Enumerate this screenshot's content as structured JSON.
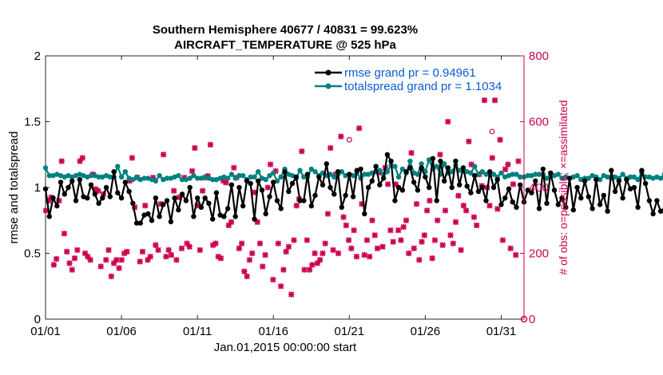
{
  "chart_data": {
    "type": "line",
    "title_line1": "Southern Hemisphere 40677 / 40831 = 99.623%",
    "title_line2": "AIRCRAFT_TEMPERATURE @ 525 hPa",
    "xlabel": "Jan.01,2015 00:00:00 start",
    "ylabel_left": "rmse and totalspread",
    "ylabel_right": "# of obs: o=possible; ×=assimilated",
    "x_tick_labels": [
      "01/01",
      "01/06",
      "01/11",
      "01/16",
      "01/21",
      "01/26",
      "01/31"
    ],
    "x_tick_days": [
      1,
      6,
      11,
      16,
      21,
      26,
      31
    ],
    "xlim": [
      1,
      32.5
    ],
    "ylim_left": [
      0,
      2
    ],
    "y_left_ticks": [
      0,
      0.5,
      1,
      1.5,
      2
    ],
    "y_left_tick_labels": [
      "0",
      "0.5",
      "1",
      "1.5",
      "2"
    ],
    "ylim_right": [
      0,
      800
    ],
    "y_right_ticks": [
      0,
      200,
      400,
      600,
      800
    ],
    "y_right_tick_labels": [
      "0",
      "200",
      "400",
      "600",
      "800"
    ],
    "legend": {
      "placement": "top-right",
      "entries": [
        "rmse grand pr = 0.94961",
        "totalspread grand pr = 1.1034"
      ]
    },
    "colors": {
      "rmse": "#000000",
      "totalspread": "#008080",
      "obs": "#cc0052",
      "legend_text": "#0a5cd6"
    },
    "x_step_days": 0.25,
    "series": [
      {
        "name": "rmse",
        "values": [
          0.99,
          0.78,
          0.92,
          0.86,
          1.04,
          0.95,
          1.0,
          1.05,
          0.9,
          1.06,
          0.93,
          0.92,
          1.02,
          0.95,
          0.88,
          0.92,
          1.0,
          0.93,
          1.12,
          0.96,
          0.92,
          1.04,
          0.97,
          0.88,
          0.73,
          0.73,
          0.79,
          0.8,
          0.75,
          0.92,
          0.78,
          0.87,
          0.9,
          0.74,
          0.92,
          0.83,
          0.95,
          0.9,
          1.0,
          0.78,
          0.92,
          0.85,
          0.92,
          0.88,
          0.76,
          0.96,
          0.79,
          0.78,
          0.84,
          1.02,
          0.78,
          1.0,
          0.86,
          1.05,
          1.03,
          0.76,
          1.05,
          0.98,
          0.8,
          0.93,
          1.04,
          0.9,
          0.84,
          1.12,
          0.97,
          1.03,
          1.08,
          0.9,
          0.9,
          1.1,
          0.86,
          0.94,
          1.08,
          1.02,
          1.18,
          1.0,
          0.95,
          1.12,
          0.85,
          0.94,
          1.1,
          0.93,
          1.13,
          1.14,
          0.8,
          1.0,
          1.05,
          1.16,
          1.02,
          1.07,
          1.25,
          1.2,
          0.9,
          1.0,
          0.98,
          1.12,
          1.15,
          1.04,
          0.98,
          1.15,
          1.08,
          1.0,
          1.22,
          0.9,
          1.2,
          1.05,
          1.15,
          1.0,
          1.2,
          1.02,
          1.15,
          1.01,
          0.96,
          1.09,
          0.97,
          1.0,
          0.9,
          1.12,
          1.0,
          1.06,
          0.87,
          0.92,
          0.99,
          0.89,
          0.85,
          1.02,
          0.89,
          0.98,
          0.96,
          1.05,
          0.84,
          1.14,
          0.88,
          1.11,
          0.98,
          0.87,
          0.92,
          0.85,
          1.07,
          0.83,
          1.0,
          0.92,
          1.05,
          0.93,
          0.84,
          1.06,
          0.87,
          0.94,
          0.82,
          1.13,
          0.97,
          1.05,
          0.92,
          1.06,
          0.99,
          1.0,
          0.85,
          1.13,
          1.03,
          0.9,
          0.8,
          0.9,
          0.82,
          0.83,
          0.85,
          0.81,
          0.83
        ]
      },
      {
        "name": "totalspread",
        "values": [
          1.15,
          1.09,
          1.09,
          1.1,
          1.09,
          1.08,
          1.09,
          1.08,
          1.09,
          1.1,
          1.09,
          1.08,
          1.09,
          1.09,
          1.08,
          1.08,
          1.09,
          1.08,
          1.08,
          1.16,
          1.08,
          1.12,
          1.07,
          1.06,
          1.08,
          1.06,
          1.07,
          1.07,
          1.06,
          1.05,
          1.09,
          1.06,
          1.07,
          1.07,
          1.08,
          1.09,
          1.06,
          1.06,
          1.07,
          1.09,
          1.07,
          1.07,
          1.08,
          1.07,
          1.06,
          1.06,
          1.07,
          1.08,
          1.07,
          1.1,
          1.07,
          1.09,
          1.09,
          1.06,
          1.08,
          1.08,
          1.12,
          1.07,
          1.06,
          1.09,
          1.11,
          1.05,
          1.08,
          1.14,
          1.1,
          1.09,
          1.07,
          1.13,
          1.08,
          1.08,
          1.14,
          1.12,
          1.09,
          1.11,
          1.09,
          1.1,
          1.08,
          1.1,
          1.12,
          1.09,
          1.1,
          1.09,
          1.11,
          1.07,
          1.1,
          1.1,
          1.11,
          1.12,
          1.13,
          1.1,
          1.12,
          1.17,
          1.16,
          1.08,
          1.14,
          1.11,
          1.2,
          1.11,
          1.1,
          1.18,
          1.12,
          1.21,
          1.14,
          1.16,
          1.1,
          1.18,
          1.11,
          1.12,
          1.17,
          1.13,
          1.13,
          1.12,
          1.11,
          1.16,
          1.1,
          1.12,
          1.1,
          1.1,
          1.1,
          1.08,
          1.11,
          1.08,
          1.09,
          1.1,
          1.1,
          1.08,
          1.08,
          1.09,
          1.09,
          1.1,
          1.1,
          1.1,
          1.07,
          1.09,
          1.09,
          1.1,
          1.07,
          1.08,
          1.07,
          1.08,
          1.09,
          1.06,
          1.07,
          1.07,
          1.09,
          1.08,
          1.06,
          1.09,
          1.08,
          1.07,
          1.08,
          1.07,
          1.1,
          1.07,
          1.08,
          1.08,
          1.06,
          1.11,
          1.08,
          1.08,
          1.07,
          1.08,
          1.07,
          1.1,
          1.1,
          1.1,
          1.1
        ]
      }
    ],
    "obs_counts": [
      330,
      360,
      370,
      165,
      183,
      360,
      480,
      260,
      205,
      170,
      150,
      185,
      210,
      480,
      490,
      200,
      190,
      180,
      440,
      395,
      390,
      160,
      380,
      180,
      210,
      130,
      170,
      180,
      155,
      180,
      200,
      205,
      420,
      490,
      340,
      430,
      175,
      205,
      345,
      180,
      190,
      430,
      225,
      210,
      350,
      500,
      190,
      210,
      195,
      390,
      180,
      370,
      215,
      430,
      230,
      220,
      450,
      520,
      345,
      210,
      390,
      430,
      435,
      530,
      225,
      230,
      190,
      185,
      420,
      415,
      285,
      295,
      460,
      430,
      215,
      230,
      145,
      130,
      180,
      200,
      385,
      295,
      230,
      160,
      195,
      400,
      470,
      120,
      450,
      230,
      100,
      150,
      205,
      220,
      75,
      240,
      345,
      365,
      510,
      150,
      240,
      150,
      165,
      200,
      170,
      180,
      200,
      230,
      320,
      520,
      210,
      440,
      200,
      555,
      310,
      285,
      240,
      215,
      270,
      190,
      580,
      350,
      195,
      240,
      190,
      300,
      255,
      215,
      445,
      220,
      460,
      410,
      270,
      235,
      410,
      270,
      240,
      280,
      300,
      200,
      505,
      215,
      350,
      180,
      235,
      255,
      330,
      360,
      185,
      240,
      300,
      500,
      225,
      330,
      600,
      255,
      230,
      295,
      375,
      210,
      345,
      330,
      540,
      470,
      310,
      285,
      440,
      405,
      665,
      400,
      345,
      490,
      665,
      335,
      545,
      240,
      455,
      470,
      215,
      410,
      195,
      480
    ],
    "obs_possible_extra": [
      {
        "day": 21.0,
        "count": 545
      },
      {
        "day": 30.4,
        "count": 570
      }
    ]
  }
}
